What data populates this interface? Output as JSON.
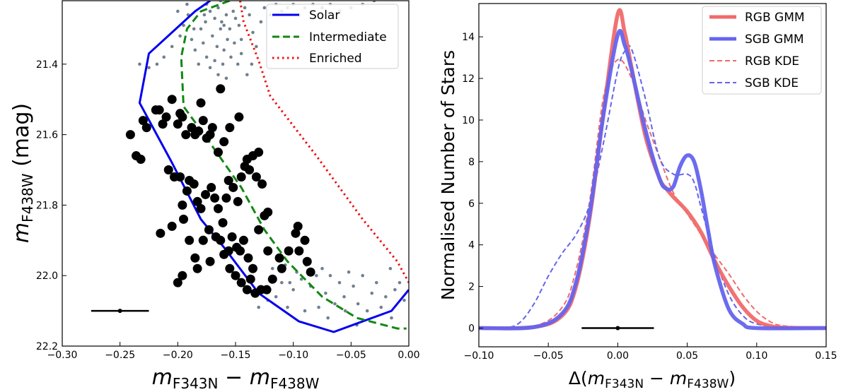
{
  "chart_data": [
    {
      "type": "scatter",
      "title": "",
      "xlabel": "m_F343N − m_F438W",
      "ylabel": "m_F438W (mag)",
      "xlim": [
        -0.3,
        0.0
      ],
      "ylim": [
        22.2,
        21.22
      ],
      "y_inverted": true,
      "xtick_labels": [
        "−0.30",
        "−0.25",
        "−0.20",
        "−0.15",
        "−0.10",
        "−0.05",
        "0.00"
      ],
      "xticks": [
        -0.3,
        -0.25,
        -0.2,
        -0.15,
        -0.1,
        -0.05,
        0.0
      ],
      "ytick_labels": [
        "21.4",
        "21.6",
        "21.8",
        "22.0",
        "22.2"
      ],
      "yticks": [
        21.4,
        21.6,
        21.8,
        22.0,
        22.2
      ],
      "legend_position": "top-right",
      "lines": [
        {
          "name": "Solar",
          "color": "#0000ee",
          "style": "solid",
          "points": [
            [
              -0.172,
              21.22
            ],
            [
              -0.185,
              21.25
            ],
            [
              -0.225,
              21.37
            ],
            [
              -0.233,
              21.51
            ],
            [
              -0.205,
              21.68
            ],
            [
              -0.18,
              21.84
            ],
            [
              -0.16,
              21.92
            ],
            [
              -0.13,
              22.05
            ],
            [
              -0.095,
              22.13
            ],
            [
              -0.065,
              22.16
            ],
            [
              -0.015,
              22.1
            ],
            [
              0.0,
              22.04
            ]
          ]
        },
        {
          "name": "Intermediate",
          "color": "#118811",
          "style": "dashed",
          "points": [
            [
              -0.155,
              21.22
            ],
            [
              -0.18,
              21.25
            ],
            [
              -0.192,
              21.3
            ],
            [
              -0.197,
              21.38
            ],
            [
              -0.195,
              21.52
            ],
            [
              -0.175,
              21.61
            ],
            [
              -0.145,
              21.75
            ],
            [
              -0.125,
              21.87
            ],
            [
              -0.105,
              21.96
            ],
            [
              -0.075,
              22.06
            ],
            [
              -0.045,
              22.12
            ],
            [
              -0.01,
              22.15
            ],
            [
              -0.002,
              22.15
            ]
          ]
        },
        {
          "name": "Enriched",
          "color": "#ee1111",
          "style": "dotted",
          "points": [
            [
              -0.146,
              21.22
            ],
            [
              -0.143,
              21.28
            ],
            [
              -0.13,
              21.39
            ],
            [
              -0.12,
              21.49
            ],
            [
              -0.08,
              21.66
            ],
            [
              -0.04,
              21.84
            ],
            [
              -0.01,
              21.96
            ],
            [
              0.0,
              22.02
            ]
          ]
        }
      ],
      "points_large": [
        [
          -0.241,
          21.6
        ],
        [
          -0.236,
          21.66
        ],
        [
          -0.232,
          21.67
        ],
        [
          -0.23,
          21.56
        ],
        [
          -0.227,
          21.58
        ],
        [
          -0.219,
          21.53
        ],
        [
          -0.216,
          21.53
        ],
        [
          -0.213,
          21.57
        ],
        [
          -0.21,
          21.55
        ],
        [
          -0.205,
          21.5
        ],
        [
          -0.2,
          21.57
        ],
        [
          -0.198,
          21.54
        ],
        [
          -0.196,
          21.55
        ],
        [
          -0.193,
          21.6
        ],
        [
          -0.188,
          21.58
        ],
        [
          -0.185,
          21.6
        ],
        [
          -0.182,
          21.59
        ],
        [
          -0.18,
          21.51
        ],
        [
          -0.178,
          21.56
        ],
        [
          -0.175,
          21.61
        ],
        [
          -0.172,
          21.6
        ],
        [
          -0.17,
          21.58
        ],
        [
          -0.165,
          21.65
        ],
        [
          -0.16,
          21.62
        ],
        [
          -0.155,
          21.58
        ],
        [
          -0.147,
          21.55
        ],
        [
          -0.14,
          21.67
        ],
        [
          -0.135,
          21.66
        ],
        [
          -0.13,
          21.65
        ],
        [
          -0.127,
          21.74
        ],
        [
          -0.163,
          21.47
        ],
        [
          -0.208,
          21.7
        ],
        [
          -0.203,
          21.72
        ],
        [
          -0.198,
          21.72
        ],
        [
          -0.196,
          21.8
        ],
        [
          -0.192,
          21.76
        ],
        [
          -0.19,
          21.73
        ],
        [
          -0.186,
          21.74
        ],
        [
          -0.183,
          21.79
        ],
        [
          -0.18,
          21.81
        ],
        [
          -0.176,
          21.77
        ],
        [
          -0.171,
          21.75
        ],
        [
          -0.168,
          21.78
        ],
        [
          -0.165,
          21.81
        ],
        [
          -0.161,
          21.85
        ],
        [
          -0.158,
          21.78
        ],
        [
          -0.156,
          21.73
        ],
        [
          -0.152,
          21.75
        ],
        [
          -0.148,
          21.79
        ],
        [
          -0.145,
          21.72
        ],
        [
          -0.142,
          21.69
        ],
        [
          -0.138,
          21.7
        ],
        [
          -0.132,
          21.72
        ],
        [
          -0.125,
          21.83
        ],
        [
          -0.122,
          21.82
        ],
        [
          -0.215,
          21.88
        ],
        [
          -0.205,
          21.86
        ],
        [
          -0.195,
          21.84
        ],
        [
          -0.19,
          21.9
        ],
        [
          -0.185,
          21.95
        ],
        [
          -0.178,
          21.9
        ],
        [
          -0.173,
          21.87
        ],
        [
          -0.167,
          21.89
        ],
        [
          -0.163,
          21.9
        ],
        [
          -0.16,
          21.94
        ],
        [
          -0.156,
          21.93
        ],
        [
          -0.153,
          21.89
        ],
        [
          -0.149,
          21.92
        ],
        [
          -0.146,
          21.93
        ],
        [
          -0.143,
          21.9
        ],
        [
          -0.139,
          21.95
        ],
        [
          -0.135,
          21.98
        ],
        [
          -0.13,
          21.87
        ],
        [
          -0.122,
          21.93
        ],
        [
          -0.112,
          21.95
        ],
        [
          -0.104,
          21.93
        ],
        [
          -0.098,
          21.88
        ],
        [
          -0.096,
          21.86
        ],
        [
          -0.09,
          21.9
        ],
        [
          -0.088,
          21.96
        ],
        [
          -0.085,
          21.99
        ],
        [
          -0.155,
          21.98
        ],
        [
          -0.15,
          22.0
        ],
        [
          -0.145,
          22.02
        ],
        [
          -0.14,
          22.04
        ],
        [
          -0.137,
          22.01
        ],
        [
          -0.133,
          22.05
        ],
        [
          -0.128,
          22.04
        ],
        [
          -0.123,
          22.04
        ],
        [
          -0.118,
          22.01
        ],
        [
          -0.11,
          21.98
        ],
        [
          -0.095,
          21.93
        ],
        [
          -0.178,
          21.9
        ],
        [
          -0.2,
          22.02
        ],
        [
          -0.196,
          22.0
        ],
        [
          -0.172,
          21.96
        ],
        [
          -0.183,
          21.98
        ]
      ],
      "points_small": [
        [
          -0.175,
          21.23
        ],
        [
          -0.172,
          21.25
        ],
        [
          -0.168,
          21.27
        ],
        [
          -0.165,
          21.24
        ],
        [
          -0.162,
          21.28
        ],
        [
          -0.158,
          21.26
        ],
        [
          -0.155,
          21.3
        ],
        [
          -0.152,
          21.25
        ],
        [
          -0.15,
          21.27
        ],
        [
          -0.147,
          21.29
        ],
        [
          -0.145,
          21.33
        ],
        [
          -0.142,
          21.24
        ],
        [
          -0.138,
          21.26
        ],
        [
          -0.135,
          21.31
        ],
        [
          -0.17,
          21.32
        ],
        [
          -0.166,
          21.35
        ],
        [
          -0.163,
          21.3
        ],
        [
          -0.16,
          21.36
        ],
        [
          -0.157,
          21.33
        ],
        [
          -0.154,
          21.38
        ],
        [
          -0.151,
          21.34
        ],
        [
          -0.148,
          21.4
        ],
        [
          -0.145,
          21.37
        ],
        [
          -0.178,
          21.34
        ],
        [
          -0.175,
          21.38
        ],
        [
          -0.172,
          21.41
        ],
        [
          -0.168,
          21.39
        ],
        [
          -0.165,
          21.43
        ],
        [
          -0.161,
          21.4
        ],
        [
          -0.158,
          21.44
        ],
        [
          -0.185,
          21.36
        ],
        [
          -0.182,
          21.4
        ],
        [
          -0.18,
          21.3
        ],
        [
          -0.176,
          21.28
        ],
        [
          -0.186,
          21.3
        ],
        [
          -0.188,
          21.33
        ],
        [
          -0.191,
          21.26
        ],
        [
          -0.195,
          21.29
        ],
        [
          -0.198,
          21.32
        ],
        [
          -0.205,
          21.35
        ],
        [
          -0.212,
          21.38
        ],
        [
          -0.218,
          21.4
        ],
        [
          -0.225,
          21.41
        ],
        [
          -0.233,
          21.4
        ],
        [
          -0.14,
          21.43
        ],
        [
          -0.136,
          21.4
        ],
        [
          -0.132,
          21.35
        ],
        [
          -0.128,
          21.28
        ],
        [
          -0.125,
          21.24
        ],
        [
          -0.12,
          21.26
        ],
        [
          -0.115,
          21.23
        ],
        [
          -0.11,
          21.25
        ],
        [
          -0.105,
          21.24
        ],
        [
          -0.1,
          21.23
        ],
        [
          -0.095,
          21.26
        ],
        [
          -0.09,
          21.24
        ],
        [
          -0.083,
          21.23
        ],
        [
          -0.075,
          21.24
        ],
        [
          -0.068,
          21.23
        ],
        [
          -0.06,
          21.25
        ],
        [
          -0.05,
          21.24
        ],
        [
          -0.04,
          21.23
        ],
        [
          -0.03,
          21.22
        ],
        [
          -0.16,
          21.29
        ],
        [
          -0.163,
          21.22
        ],
        [
          -0.177,
          21.26
        ],
        [
          -0.192,
          21.23
        ],
        [
          -0.2,
          21.25
        ],
        [
          -0.107,
          21.97
        ],
        [
          -0.103,
          22.02
        ],
        [
          -0.1,
          22.04
        ],
        [
          -0.097,
          21.99
        ],
        [
          -0.093,
          22.01
        ],
        [
          -0.089,
          21.97
        ],
        [
          -0.085,
          22.03
        ],
        [
          -0.08,
          22.0
        ],
        [
          -0.075,
          21.98
        ],
        [
          -0.072,
          22.05
        ],
        [
          -0.068,
          22.0
        ],
        [
          -0.064,
          22.08
        ],
        [
          -0.06,
          22.02
        ],
        [
          -0.056,
          22.06
        ],
        [
          -0.052,
          21.99
        ],
        [
          -0.048,
          22.03
        ],
        [
          -0.044,
          22.08
        ],
        [
          -0.04,
          22.0
        ],
        [
          -0.036,
          22.1
        ],
        [
          -0.032,
          22.05
        ],
        [
          -0.028,
          22.02
        ],
        [
          -0.024,
          22.09
        ],
        [
          -0.02,
          22.06
        ],
        [
          -0.016,
          21.98
        ],
        [
          -0.012,
          22.04
        ],
        [
          -0.115,
          22.06
        ],
        [
          -0.11,
          22.02
        ],
        [
          -0.118,
          21.98
        ],
        [
          -0.122,
          22.07
        ],
        [
          -0.13,
          22.09
        ],
        [
          -0.105,
          22.09
        ],
        [
          -0.09,
          22.1
        ],
        [
          -0.078,
          22.09
        ],
        [
          -0.07,
          22.12
        ],
        [
          -0.055,
          22.1
        ],
        [
          -0.045,
          22.14
        ],
        [
          -0.008,
          22.02
        ],
        [
          -0.004,
          22.07
        ],
        [
          -0.015,
          22.12
        ]
      ],
      "errorbar": {
        "x": -0.25,
        "y": 22.1,
        "xerr": 0.025
      }
    },
    {
      "type": "line",
      "title": "",
      "xlabel": "Δ(m_F343N − m_F438W)",
      "ylabel": "Normalised Number of Stars",
      "xlim": [
        -0.1,
        0.15
      ],
      "ylim": [
        -0.9,
        15.6
      ],
      "xtick_labels": [
        "−0.10",
        "−0.05",
        "0.00",
        "0.05",
        "0.10",
        "0.15"
      ],
      "xticks": [
        -0.1,
        -0.05,
        0.0,
        0.05,
        0.1,
        0.15
      ],
      "ytick_labels": [
        "0",
        "2",
        "4",
        "6",
        "8",
        "10",
        "12",
        "14"
      ],
      "yticks": [
        0,
        2,
        4,
        6,
        8,
        10,
        12,
        14
      ],
      "legend_position": "top-right",
      "series": [
        {
          "name": "RGB GMM",
          "color": "#f06a6a",
          "style": "solid-thick",
          "x": [
            -0.1,
            -0.06,
            -0.04,
            -0.03,
            -0.02,
            -0.01,
            0.0,
            0.005,
            0.01,
            0.02,
            0.03,
            0.035,
            0.04,
            0.05,
            0.06,
            0.07,
            0.08,
            0.09,
            0.1,
            0.11,
            0.12,
            0.15
          ],
          "y": [
            0.0,
            0.05,
            0.6,
            2.0,
            5.4,
            10.5,
            15.1,
            14.2,
            12.5,
            9.2,
            7.2,
            6.7,
            6.3,
            5.6,
            4.6,
            3.2,
            2.0,
            1.0,
            0.35,
            0.1,
            0.02,
            0.0
          ]
        },
        {
          "name": "SGB GMM",
          "color": "#6464ee",
          "style": "solid-thick",
          "x": [
            -0.1,
            -0.06,
            -0.04,
            -0.03,
            -0.02,
            -0.01,
            0.0,
            0.005,
            0.01,
            0.02,
            0.03,
            0.035,
            0.04,
            0.045,
            0.05,
            0.055,
            0.06,
            0.065,
            0.07,
            0.08,
            0.09,
            0.1,
            0.15
          ],
          "y": [
            0.0,
            0.05,
            0.7,
            2.2,
            5.6,
            10.4,
            14.1,
            13.6,
            12.4,
            9.5,
            7.2,
            6.7,
            6.8,
            7.8,
            8.3,
            8.0,
            6.6,
            4.7,
            3.0,
            0.9,
            0.2,
            0.0,
            0.0
          ]
        },
        {
          "name": "RGB KDE",
          "color": "#f06a6a",
          "style": "dashed",
          "x": [
            -0.1,
            -0.06,
            -0.04,
            -0.03,
            -0.02,
            -0.01,
            0.0,
            0.01,
            0.02,
            0.03,
            0.04,
            0.05,
            0.06,
            0.07,
            0.08,
            0.09,
            0.1,
            0.11,
            0.12,
            0.15
          ],
          "y": [
            0.0,
            0.1,
            1.0,
            2.8,
            6.2,
            11.2,
            12.9,
            12.0,
            10.0,
            8.2,
            6.5,
            5.5,
            4.5,
            3.5,
            2.6,
            1.6,
            0.8,
            0.3,
            0.1,
            0.0
          ]
        },
        {
          "name": "SGB KDE",
          "color": "#6464ee",
          "style": "dashed",
          "x": [
            -0.1,
            -0.08,
            -0.07,
            -0.06,
            -0.05,
            -0.04,
            -0.03,
            -0.02,
            -0.01,
            0.0,
            0.005,
            0.01,
            0.02,
            0.03,
            0.04,
            0.05,
            0.055,
            0.06,
            0.07,
            0.08,
            0.09,
            0.1,
            0.12,
            0.15
          ],
          "y": [
            0.0,
            0.02,
            0.3,
            1.2,
            2.5,
            3.6,
            4.5,
            6.0,
            9.0,
            12.4,
            13.3,
            13.4,
            11.0,
            8.2,
            7.4,
            7.4,
            7.0,
            5.8,
            3.4,
            1.6,
            0.6,
            0.2,
            0.02,
            0.0
          ]
        }
      ],
      "errorbar": {
        "x": 0.0,
        "y": 0.0,
        "xerr": 0.026
      }
    }
  ]
}
